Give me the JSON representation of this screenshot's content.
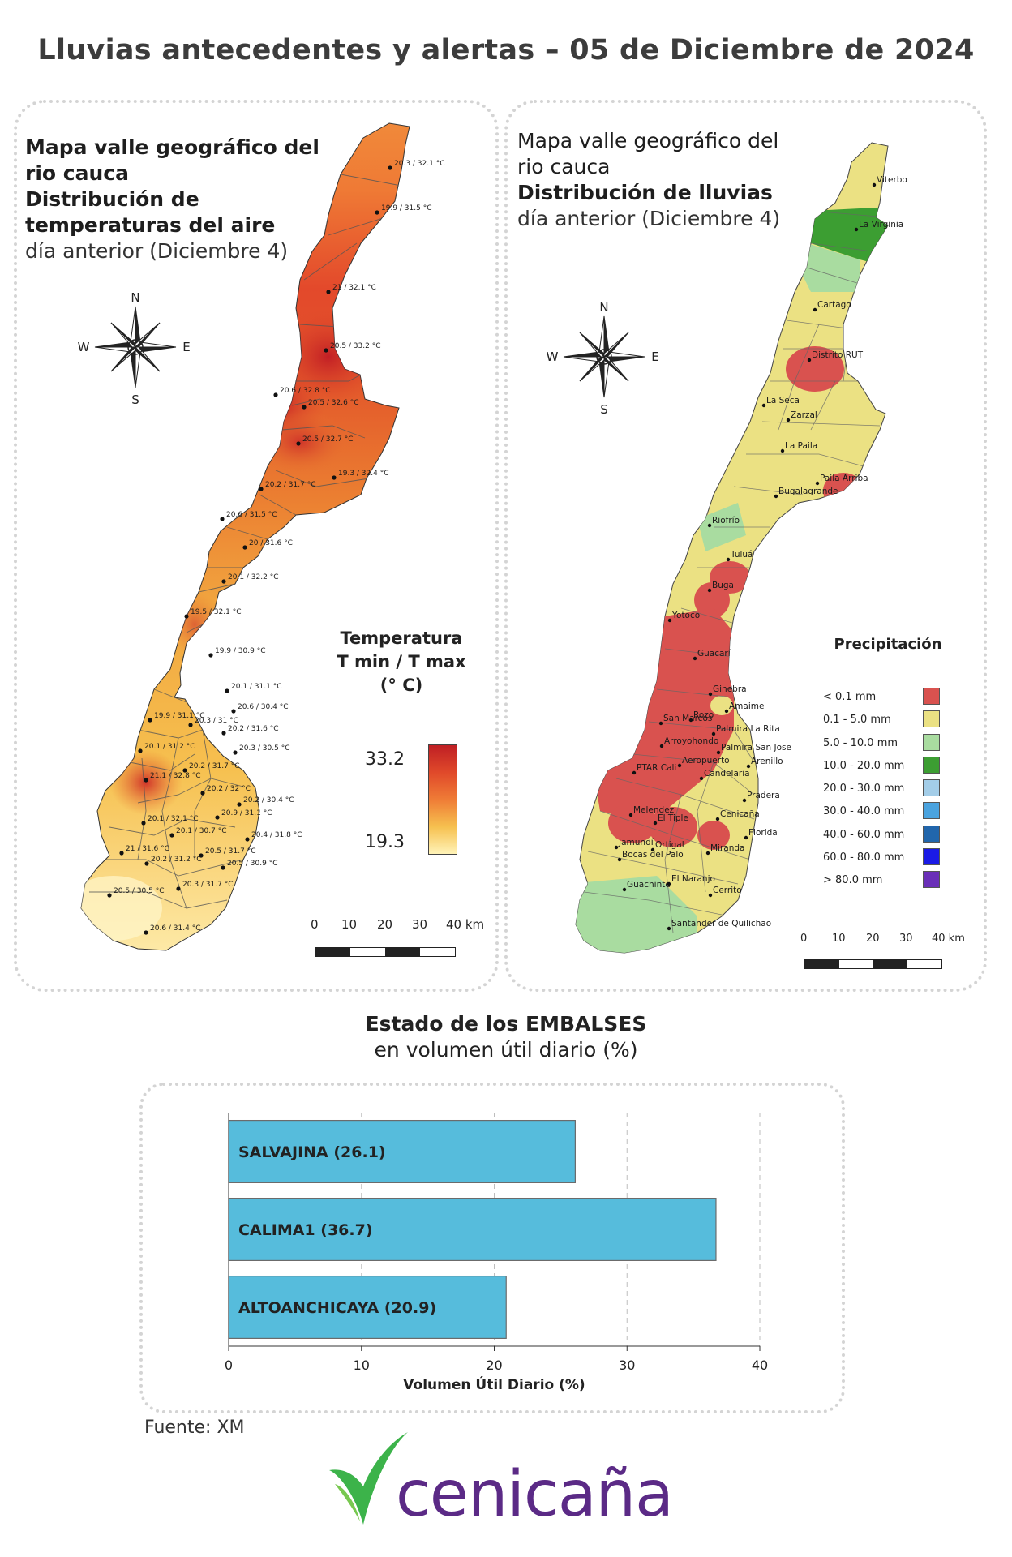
{
  "title": "Lluvias antecedentes y alertas – 05 de Diciembre de 2024",
  "temp_map": {
    "title_line1": "Mapa valle geográfico del",
    "title_line2": "rio cauca",
    "title_line3": "Distribución de",
    "title_line4": "temperaturas del aire",
    "subtitle": "día anterior (Diciembre 4)",
    "legend": {
      "title_line1": "Temperatura",
      "title_line2": "T min / T max",
      "title_line3": "(° C)",
      "max": "33.2",
      "min": "19.3"
    },
    "stations": [
      "20.3 / 32.1 °C",
      "19.9 / 31.5 °C",
      "21 / 32.1 °C",
      "20.5 / 33.2 °C",
      "20.6 / 32.8 °C",
      "20.5 / 32.6 °C",
      "20.5 / 32.7 °C",
      "19.3 / 32.4 °C",
      "20.2 / 31.7 °C",
      "20.6 / 31.5 °C",
      "20 / 31.6 °C",
      "20.1 / 32.2 °C",
      "19.5 / 32.1 °C",
      "19.9 / 30.9 °C",
      "20.1 / 31.1 °C",
      "20.6 / 30.4 °C",
      "19.9 / 31.1 °C",
      "20.3 / 31 °C",
      "20.2 / 31.6 °C",
      "20.1 / 31.2 °C",
      "20.3 / 30.5 °C",
      "20.2 / 31.7 °C",
      "21.1 / 32.8 °C",
      "20.2 / 32 °C",
      "20.2 / 30.4 °C",
      "20.9 / 31.1 °C",
      "20.1 / 32.1 °C",
      "20.1 / 30.7 °C",
      "20.4 / 31.8 °C",
      "21 / 31.6 °C",
      "20.5 / 31.7 °C",
      "20.2 / 31.2 °C",
      "20.5 / 30.9 °C",
      "20.3 / 31.7 °C",
      "20.5 / 30.5 °C",
      "20.6 / 31.4 °C"
    ],
    "scale_labels": [
      "0",
      "10",
      "20",
      "30",
      "40 km"
    ]
  },
  "rain_map": {
    "title_line1": "Mapa valle geográfico del",
    "title_line2": "rio cauca",
    "title_line3": "Distribución de lluvias",
    "subtitle": "día anterior (Diciembre 4)",
    "legend_title": "Precipitación",
    "legend": [
      {
        "label": "< 0.1 mm",
        "color": "#d9524f"
      },
      {
        "label": "0.1 - 5.0 mm",
        "color": "#ebe183"
      },
      {
        "label": "5.0 - 10.0 mm",
        "color": "#a9dca0"
      },
      {
        "label": "10.0 - 20.0 mm",
        "color": "#3c9e32"
      },
      {
        "label": "20.0 - 30.0 mm",
        "color": "#a3cde8"
      },
      {
        "label": "30.0 - 40.0 mm",
        "color": "#4aa3df"
      },
      {
        "label": "40.0 - 60.0 mm",
        "color": "#2166ac"
      },
      {
        "label": "60.0 - 80.0 mm",
        "color": "#1a1ae6"
      },
      {
        "label": "> 80.0 mm",
        "color": "#6a2fb8"
      }
    ],
    "places": [
      "Viterbo",
      "La Virginia",
      "Cartago",
      "Distrito RUT",
      "La Seca",
      "Zarzal",
      "La Paila",
      "Paila Arriba",
      "Bugalagrande",
      "Riofrío",
      "Tuluá",
      "Buga",
      "Yotoco",
      "Guacarí",
      "Ginebra",
      "Amaime",
      "San Marcos",
      "Rozo",
      "Palmira La Rita",
      "Arroyohondo",
      "Palmira San Jose",
      "Aeropuerto",
      "Arenillo",
      "PTAR Cali",
      "Candelaria",
      "Pradera",
      "Melendez",
      "El Tiple",
      "Cenicaña",
      "Florida",
      "Jamundí",
      "Bocas del Palo",
      "Ortigal",
      "Miranda",
      "Guachinte",
      "El Naranjo",
      "Cerrito",
      "Santander de Quilichao"
    ],
    "scale_labels": [
      "0",
      "10",
      "20",
      "30",
      "40 km"
    ]
  },
  "compass": {
    "n": "N",
    "s": "S",
    "e": "E",
    "w": "W"
  },
  "reservoirs": {
    "title": "Estado de los EMBALSES",
    "subtitle": "en volumen útil diario (%)",
    "source": "Fuente: XM"
  },
  "chart_data": {
    "type": "bar",
    "orientation": "horizontal",
    "categories": [
      "SALVAJINA (26.1)",
      "CALIMA1 (36.7)",
      "ALTOANCHICAYA (20.9)"
    ],
    "values": [
      26.1,
      36.7,
      20.9
    ],
    "xlabel": "Volumen Útil Diario (%)",
    "xlim": [
      0,
      40
    ],
    "xticks": [
      "0",
      "10",
      "20",
      "30",
      "40"
    ],
    "bar_color": "#56bcdc",
    "grid": "vertical dashed"
  },
  "logo": {
    "text": "cenicaña",
    "text_color": "#5b2a86",
    "mark_color": "#3cb34a"
  }
}
